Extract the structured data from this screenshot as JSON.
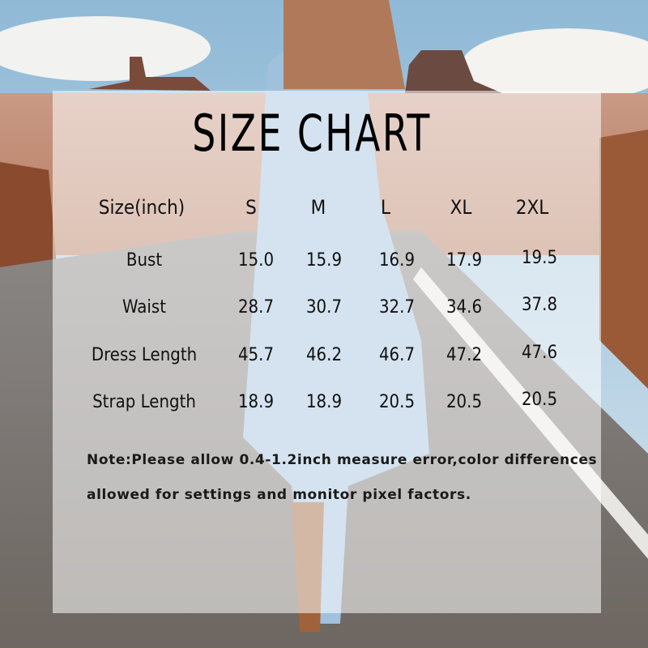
{
  "title": "SIZE CHART",
  "table": {
    "header": [
      "Size(inch)",
      "S",
      "M",
      "L",
      "XL",
      "2XL"
    ],
    "rows": [
      {
        "label": "Bust",
        "values": [
          "15.0",
          "15.9",
          "16.9",
          "17.9",
          "19.5"
        ]
      },
      {
        "label": "Waist",
        "values": [
          "28.7",
          "30.7",
          "32.7",
          "34.6",
          "37.8"
        ]
      },
      {
        "label": "Dress Length",
        "values": [
          "45.7",
          "46.2",
          "46.7",
          "47.2",
          "47.6"
        ]
      },
      {
        "label": "Strap Length",
        "values": [
          "18.9",
          "18.9",
          "20.5",
          "20.5",
          "20.5"
        ]
      }
    ]
  },
  "note": {
    "line1": "Note:Please allow 0.4-1.2inch measure error,color differences",
    "line2": "allowed for settings and monitor pixel factors."
  }
}
